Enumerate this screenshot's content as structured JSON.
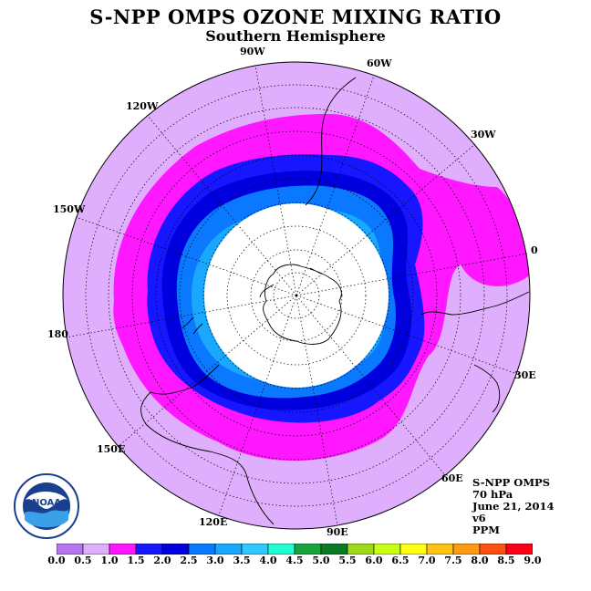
{
  "title": "S-NPP OMPS OZONE MIXING RATIO",
  "subtitle": "Southern Hemisphere",
  "info": {
    "instrument": "S-NPP OMPS",
    "pressure": "70 hPa",
    "date": "June 21, 2014",
    "version": "v6",
    "units": "PPM"
  },
  "longitude_labels": [
    "90W",
    "60W",
    "30W",
    "0",
    "30E",
    "60E",
    "90E",
    "120E",
    "150E",
    "180",
    "150W",
    "120W"
  ],
  "colorbar": {
    "ticks": [
      "0.0",
      "0.5",
      "1.0",
      "1.5",
      "2.0",
      "2.5",
      "3.0",
      "3.5",
      "4.0",
      "4.5",
      "5.0",
      "5.5",
      "6.0",
      "6.5",
      "7.0",
      "7.5",
      "8.0",
      "8.5",
      "9.0"
    ],
    "colors": [
      "#b676f0",
      "#dfaefc",
      "#ff17ff",
      "#1616ff",
      "#0000df",
      "#0a78ff",
      "#1aa8ff",
      "#2fc8ff",
      "#20ffd0",
      "#16a43c",
      "#0a7a26",
      "#9fd816",
      "#c8ff16",
      "#ffff16",
      "#ffc316",
      "#ff9a12",
      "#ff5212",
      "#ff0016",
      "#8a4a2a"
    ]
  },
  "logo": {
    "text": "NOAA"
  }
}
